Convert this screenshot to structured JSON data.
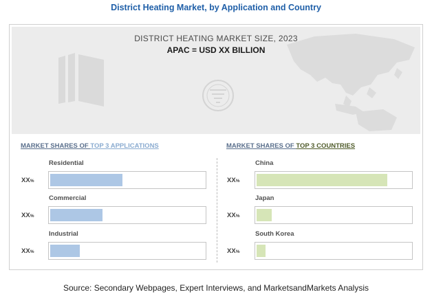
{
  "title": "District Heating Market, by Application and Country",
  "hero": {
    "subtitle": "DISTRICT HEATING MARKET SIZE, 2023",
    "headline": "APAC = USD XX BILLION"
  },
  "applications": {
    "title_prefix": "MARKET SHARES OF ",
    "title_highlight": "TOP 3 APPLICATIONS",
    "items": [
      {
        "label": "Residential",
        "value": "XX",
        "unit": "%"
      },
      {
        "label": "Commercial",
        "value": "XX",
        "unit": "%"
      },
      {
        "label": "Industrial",
        "value": "XX",
        "unit": "%"
      }
    ]
  },
  "countries": {
    "title_prefix": "MARKET SHARES OF ",
    "title_highlight": "TOP 3 COUNTRIES",
    "items": [
      {
        "label": "China",
        "value": "XX",
        "unit": "%"
      },
      {
        "label": "Japan",
        "value": "XX",
        "unit": "%"
      },
      {
        "label": "South Korea",
        "value": "XX",
        "unit": "%"
      }
    ]
  },
  "colors": {
    "title": "#1f5fa8",
    "application_bar": "#adc7e5",
    "country_bar": "#d6e5b7"
  },
  "icons": [
    "building-icon",
    "globe-emblem-icon",
    "asia-map-icon"
  ],
  "chart_data": [
    {
      "type": "bar",
      "orientation": "horizontal",
      "title": "MARKET SHARES OF TOP 3 APPLICATIONS",
      "categories": [
        "Residential",
        "Commercial",
        "Industrial"
      ],
      "values": [
        47,
        34,
        19
      ],
      "value_labels": [
        "XX%",
        "XX%",
        "XX%"
      ],
      "xlim": [
        0,
        100
      ]
    },
    {
      "type": "bar",
      "orientation": "horizontal",
      "title": "MARKET SHARES OF TOP 3 COUNTRIES",
      "categories": [
        "China",
        "Japan",
        "South Korea"
      ],
      "values": [
        85,
        10,
        6
      ],
      "value_labels": [
        "XX%",
        "XX%",
        "XX%"
      ],
      "xlim": [
        0,
        100
      ]
    }
  ],
  "source": "Source: Secondary Webpages, Expert Interviews, and MarketsandMarkets Analysis"
}
